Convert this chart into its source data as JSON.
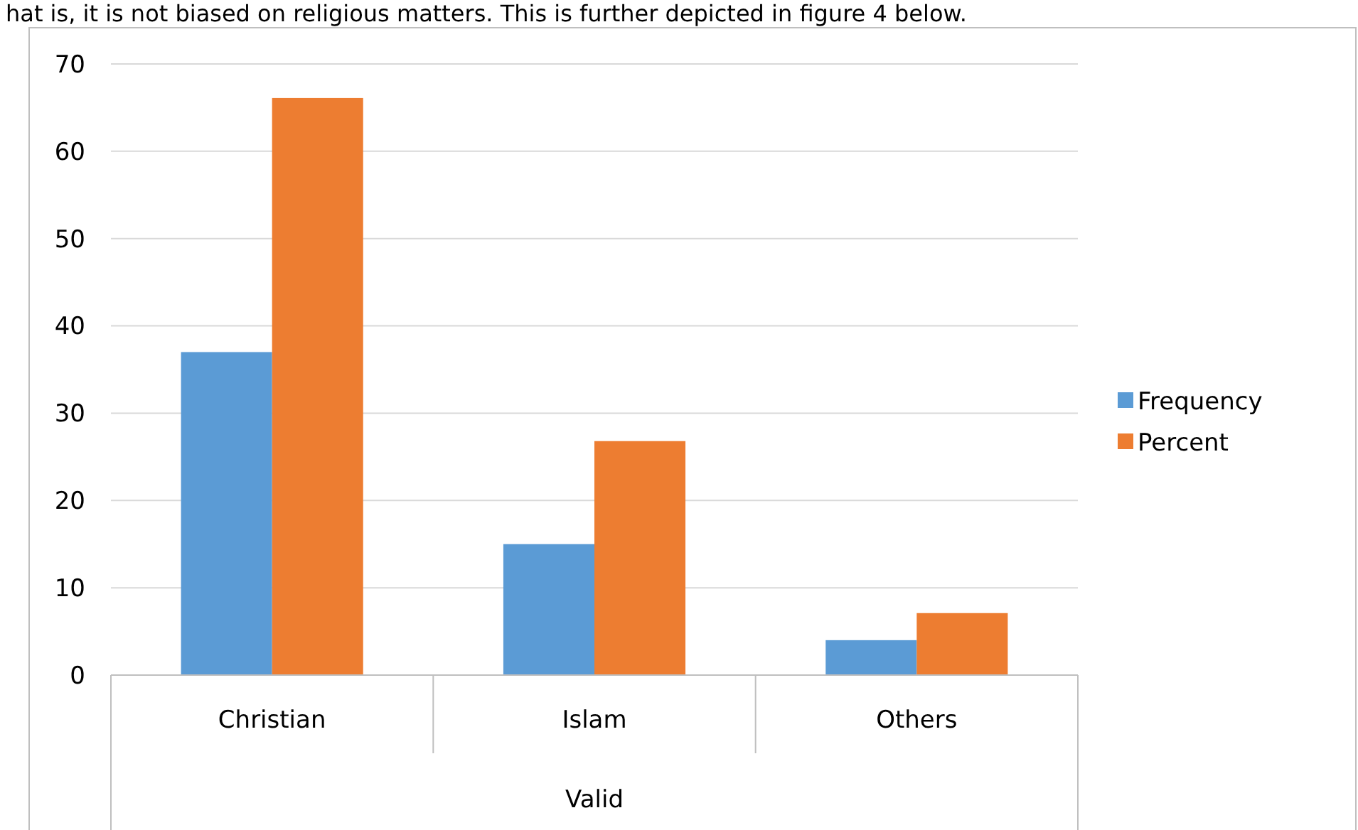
{
  "chart_data": {
    "type": "bar",
    "xlabel": "Valid",
    "annotations": [
      "hat is, it is not biased on religious matters. This is further depicted in figure 4 below."
    ],
    "categories": [
      "Christian",
      "Islam",
      "Others"
    ],
    "series": [
      {
        "name": "Frequency",
        "color": "#5b9bd5",
        "values": [
          37,
          15,
          4
        ]
      },
      {
        "name": "Percent",
        "color": "#ed7d31",
        "values": [
          66.1,
          26.8,
          7.1
        ]
      }
    ],
    "ylim": [
      0,
      70
    ],
    "yticks": [
      0,
      10,
      20,
      30,
      40,
      50,
      60,
      70
    ],
    "grid": "y",
    "legend": "right"
  }
}
